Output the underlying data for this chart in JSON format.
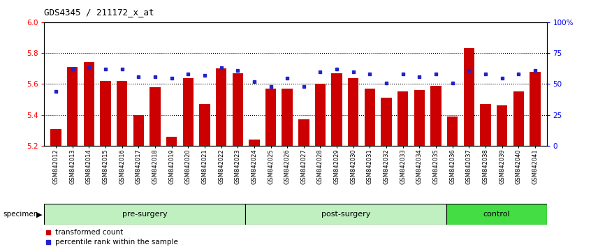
{
  "title": "GDS4345 / 211172_x_at",
  "categories": [
    "GSM842012",
    "GSM842013",
    "GSM842014",
    "GSM842015",
    "GSM842016",
    "GSM842017",
    "GSM842018",
    "GSM842019",
    "GSM842020",
    "GSM842021",
    "GSM842022",
    "GSM842023",
    "GSM842024",
    "GSM842025",
    "GSM842026",
    "GSM842027",
    "GSM842028",
    "GSM842029",
    "GSM842030",
    "GSM842031",
    "GSM842032",
    "GSM842033",
    "GSM842034",
    "GSM842035",
    "GSM842036",
    "GSM842037",
    "GSM842038",
    "GSM842039",
    "GSM842040",
    "GSM842041"
  ],
  "bar_values": [
    5.31,
    5.71,
    5.74,
    5.62,
    5.62,
    5.4,
    5.58,
    5.26,
    5.64,
    5.47,
    5.7,
    5.67,
    5.24,
    5.57,
    5.57,
    5.37,
    5.6,
    5.67,
    5.64,
    5.57,
    5.51,
    5.55,
    5.56,
    5.59,
    5.39,
    5.83,
    5.47,
    5.46,
    5.55,
    5.68
  ],
  "percentile_values": [
    44,
    62,
    63,
    62,
    62,
    56,
    56,
    55,
    58,
    57,
    63,
    61,
    52,
    48,
    55,
    48,
    60,
    62,
    60,
    58,
    51,
    58,
    56,
    58,
    51,
    61,
    58,
    55,
    58,
    61
  ],
  "groups": [
    {
      "label": "pre-surgery",
      "start": 0,
      "end": 12
    },
    {
      "label": "post-surgery",
      "start": 12,
      "end": 24
    },
    {
      "label": "control",
      "start": 24,
      "end": 30
    }
  ],
  "group_colors": [
    "#c0f0c0",
    "#c0f0c0",
    "#44dd44"
  ],
  "ylim_left": [
    5.2,
    6.0
  ],
  "ylim_right": [
    0,
    100
  ],
  "bar_color": "#CC0000",
  "dot_color": "#2222CC",
  "grid_values": [
    5.4,
    5.6,
    5.8
  ],
  "left_ticks": [
    5.2,
    5.4,
    5.6,
    5.8,
    6.0
  ],
  "right_ticks": [
    0,
    25,
    50,
    75,
    100
  ],
  "right_tick_labels": [
    "0",
    "25",
    "50",
    "75",
    "100%"
  ],
  "bar_width": 0.65,
  "background_color": "#ffffff"
}
